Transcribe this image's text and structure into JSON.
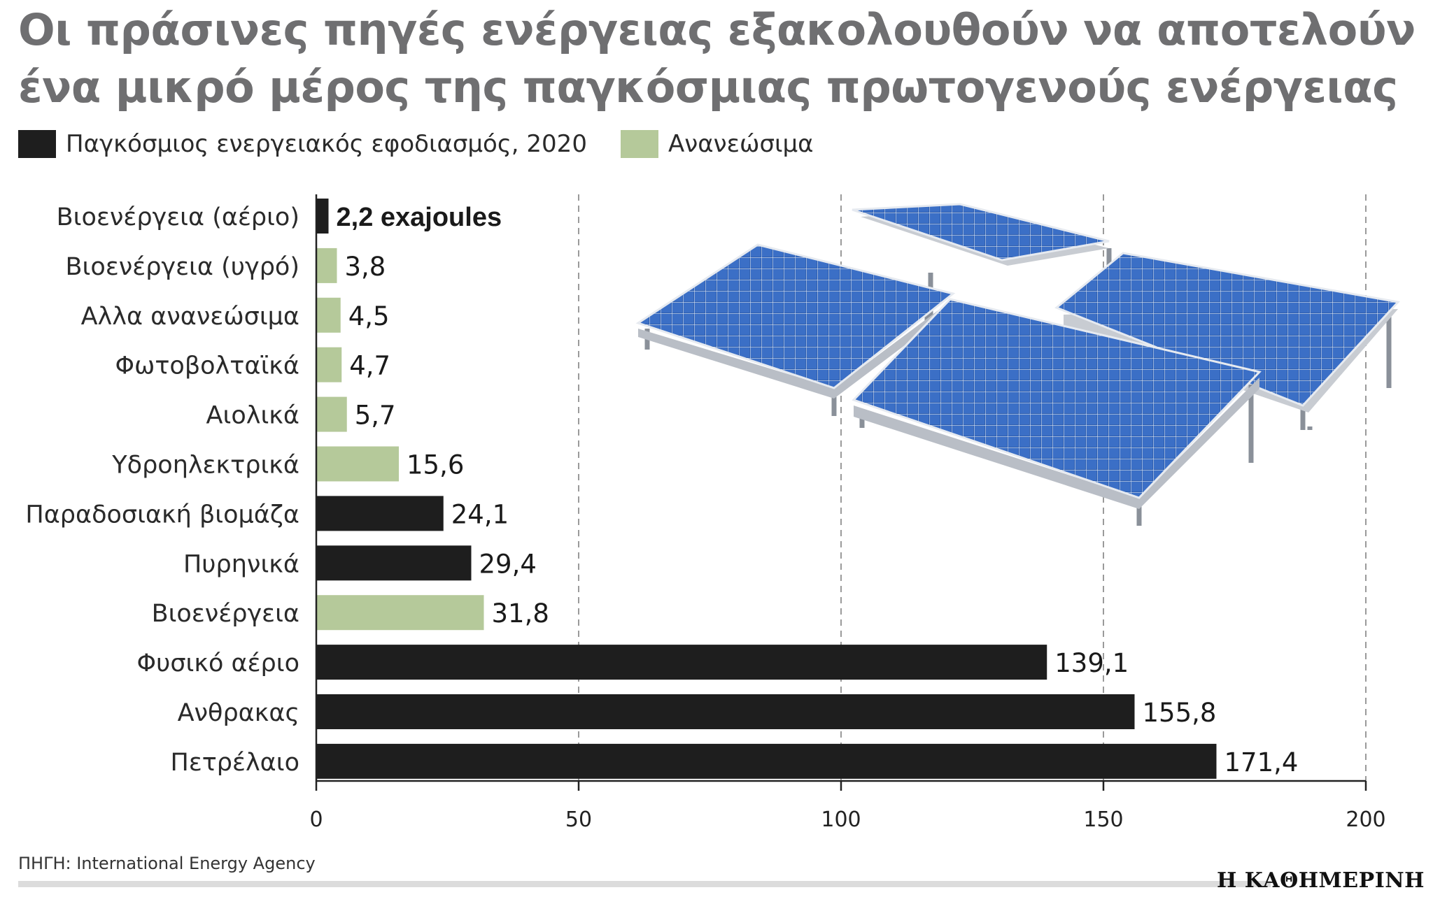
{
  "title_lines": [
    "Οι πράσινες πηγές ενέργειας εξακολουθούν να αποτελούν",
    "ένα μικρό μέρος της παγκόσμιας πρωτογενούς ενέργειας"
  ],
  "legend": [
    {
      "label": "Παγκόσμιος ενεργειακός εφοδιασμός, 2020",
      "color": "#1e1e1e"
    },
    {
      "label": "Ανανεώσιμα",
      "color": "#b5c99a"
    }
  ],
  "colors": {
    "supply": "#1e1e1e",
    "renewable": "#b5c99a",
    "gridline": "#9a9a9a"
  },
  "illustration": {
    "icon": "solar-panels-icon"
  },
  "chart_data": {
    "type": "bar",
    "orientation": "horizontal",
    "categories": [
      "Βιοενέργεια (αέριο)",
      "Βιοενέργεια (υγρό)",
      "Αλλα ανανεώσιμα",
      "Φωτοβολταϊκά",
      "Αιολικά",
      "Υδροηλεκτρικά",
      "Παραδοσιακή βιομάζα",
      "Πυρηνικά",
      "Βιοενέργεια",
      "Φυσικό αέριο",
      "Ανθρακας",
      "Πετρέλαιο"
    ],
    "values": [
      2.2,
      3.8,
      4.5,
      4.7,
      5.7,
      15.6,
      24.1,
      29.4,
      31.8,
      139.1,
      155.8,
      171.4
    ],
    "value_labels": [
      "2,2 exajoules",
      "3,8",
      "4,5",
      "4,7",
      "5,7",
      "15,6",
      "24,1",
      "29,4",
      "31,8",
      "139,1",
      "155,8",
      "171,4"
    ],
    "series_type": [
      "supply",
      "renewable",
      "renewable",
      "renewable",
      "renewable",
      "renewable",
      "supply",
      "supply",
      "renewable",
      "supply",
      "supply",
      "supply"
    ],
    "xlim": [
      0,
      200
    ],
    "xticks": [
      0,
      50,
      100,
      150,
      200
    ],
    "xtick_labels": [
      "0",
      "50",
      "100",
      "150",
      "200"
    ],
    "grid": "vertical dashed",
    "unit": "exajoules"
  },
  "source": "ΠΗΓΗ: International Energy Agency",
  "publisher": "Η ΚΑΘΗΜΕΡΙΝΗ"
}
